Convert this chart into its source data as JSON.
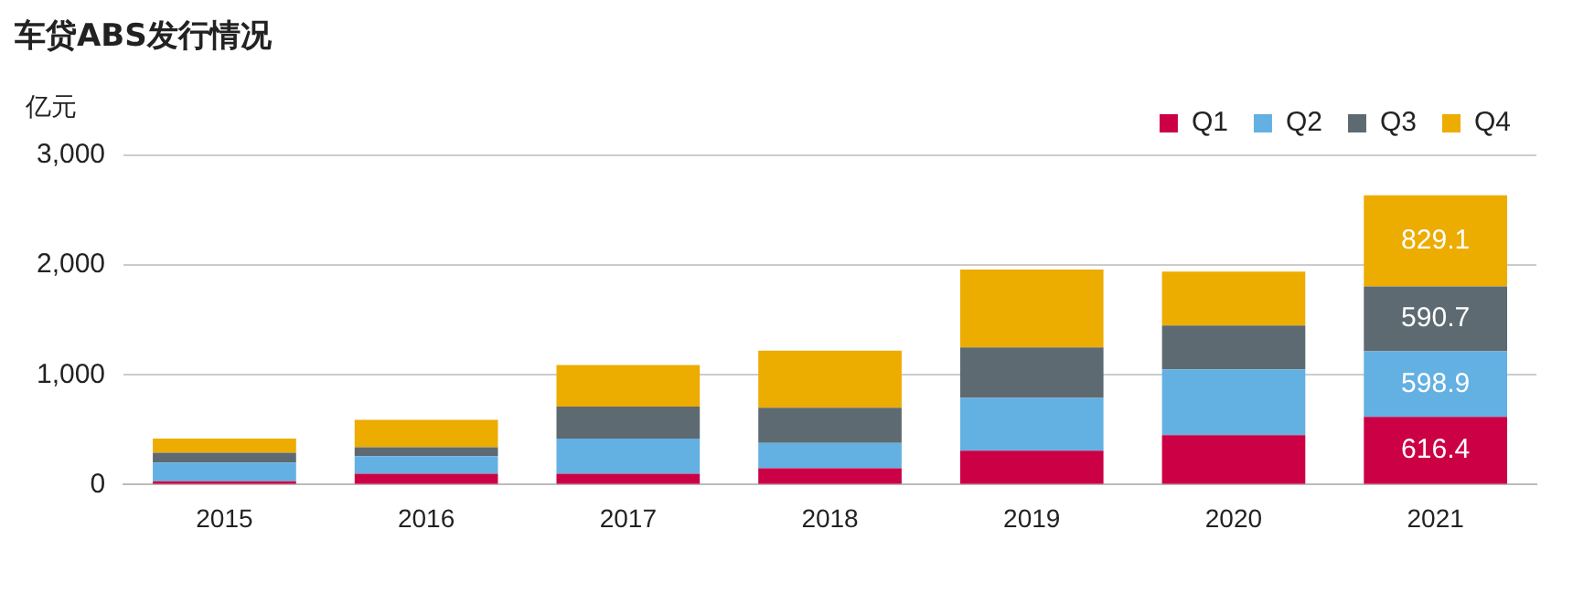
{
  "chart_data": {
    "type": "bar",
    "title": "车贷ABS发行情况",
    "ylabel": "亿元",
    "stacked": true,
    "categories": [
      "2015",
      "2016",
      "2017",
      "2018",
      "2019",
      "2020",
      "2021"
    ],
    "series": [
      {
        "name": "Q1",
        "color": "#cc0044",
        "values": [
          30,
          100,
          100,
          150,
          310,
          450,
          616.4
        ],
        "value_labels": [
          null,
          null,
          null,
          null,
          null,
          null,
          "616.4"
        ]
      },
      {
        "name": "Q2",
        "color": "#63b0e3",
        "values": [
          170,
          160,
          320,
          230,
          480,
          600,
          598.9
        ],
        "value_labels": [
          null,
          null,
          null,
          null,
          null,
          null,
          "598.9"
        ]
      },
      {
        "name": "Q3",
        "color": "#5e6a71",
        "values": [
          90,
          80,
          290,
          320,
          460,
          400,
          590.7
        ],
        "value_labels": [
          null,
          null,
          null,
          null,
          null,
          null,
          "590.7"
        ]
      },
      {
        "name": "Q4",
        "color": "#ecac00",
        "values": [
          130,
          250,
          380,
          520,
          710,
          490,
          829.1
        ],
        "value_labels": [
          null,
          null,
          null,
          null,
          null,
          null,
          "829.1"
        ]
      }
    ],
    "ylim": [
      0,
      3000
    ],
    "yticks": [
      {
        "value": 0,
        "label": "0"
      },
      {
        "value": 1000,
        "label": "1,000"
      },
      {
        "value": 2000,
        "label": "2,000"
      },
      {
        "value": 3000,
        "label": "3,000"
      }
    ],
    "grid": "y",
    "legend": "top right"
  }
}
